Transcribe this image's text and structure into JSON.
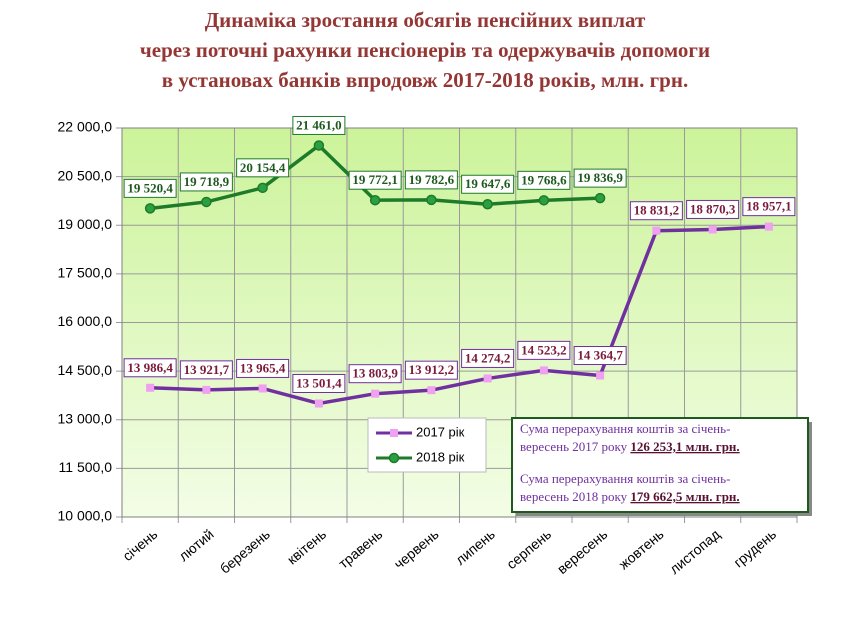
{
  "chart_data": {
    "type": "line",
    "title": [
      "Динаміка зростання обсягів пенсійних виплат",
      "через поточні рахунки пенсіонерів та одержувачів допомоги",
      "в установах банків впродовж 2017-2018 років, млн. грн."
    ],
    "categories": [
      "січень",
      "лютий",
      "березень",
      "квітень",
      "травень",
      "червень",
      "липень",
      "серпень",
      "вересень",
      "жовтень",
      "листопад",
      "грудень"
    ],
    "series": [
      {
        "name": "2017 рік",
        "color": "#7030a0",
        "marker_color": "#f0a0f0",
        "marker": "square",
        "values": [
          13986.4,
          13921.7,
          13965.4,
          13501.4,
          13803.9,
          13912.2,
          14274.2,
          14523.2,
          14364.7,
          18831.2,
          18870.3,
          18957.1
        ],
        "value_labels": [
          "13 986,4",
          "13 921,7",
          "13 965,4",
          "13 501,4",
          "13 803,9",
          "13 912,2",
          "14 274,2",
          "14 523,2",
          "14 364,7",
          "18 831,2",
          "18 870,3",
          "18 957,1"
        ]
      },
      {
        "name": "2018 рік",
        "color": "#1e7b2a",
        "marker_color": "#2aa040",
        "marker": "circle",
        "values": [
          19520.4,
          19718.9,
          20154.4,
          21461.0,
          19772.1,
          19782.6,
          19647.6,
          19768.6,
          19836.9,
          null,
          null,
          null
        ],
        "value_labels": [
          "19 520,4",
          "19 718,9",
          "20 154,4",
          "21 461,0",
          "19 772,1",
          "19 782,6",
          "19 647,6",
          "19 768,6",
          "19 836,9",
          null,
          null,
          null
        ]
      }
    ],
    "ylim": [
      10000,
      22000
    ],
    "yticks": [
      {
        "value": 10000,
        "label": "10 000,0"
      },
      {
        "value": 11500,
        "label": "11 500,0"
      },
      {
        "value": 13000,
        "label": "13 000,0"
      },
      {
        "value": 14500,
        "label": "14 500,0"
      },
      {
        "value": 16000,
        "label": "16 000,0"
      },
      {
        "value": 17500,
        "label": "17 500,0"
      },
      {
        "value": 19000,
        "label": "19 000,0"
      },
      {
        "value": 20500,
        "label": "20 500,0"
      },
      {
        "value": 22000,
        "label": "22 000,0"
      }
    ],
    "grid": true,
    "annotations": [
      {
        "line1": "Сума перерахування коштів  за січень-",
        "line2": "вересень 2017 року ",
        "amount": "126 253,1 млн. грн."
      },
      {
        "line1": "Сума перерахування коштів  за січень-",
        "line2": "вересень 2018 року ",
        "amount": "179 662,5 млн. грн."
      }
    ]
  }
}
